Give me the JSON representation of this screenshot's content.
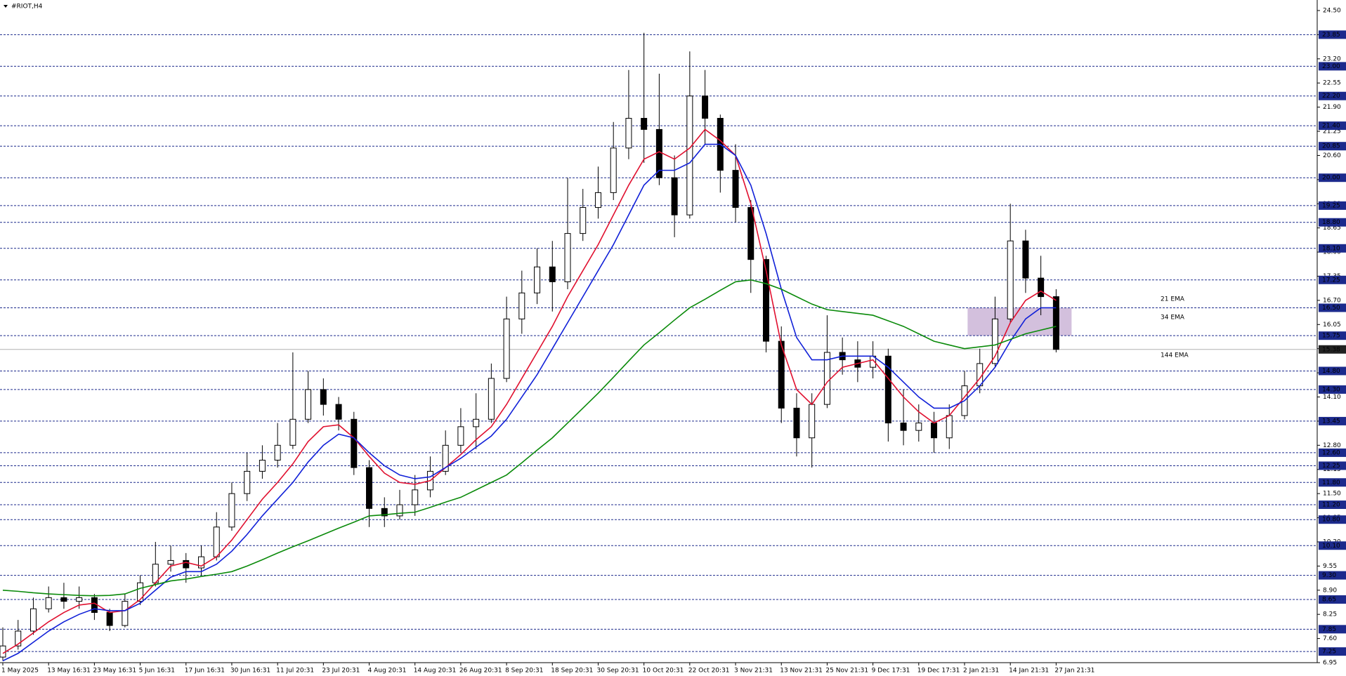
{
  "chart_data": {
    "type": "candlestick",
    "title": "#RIOT,H4",
    "categories": [
      "1 May 2025",
      null,
      null,
      "13 May 16:31",
      null,
      null,
      "23 May 16:31",
      null,
      null,
      "5 Jun 16:31",
      null,
      null,
      "17 Jun 16:31",
      null,
      null,
      "30 Jun 16:31",
      null,
      null,
      "11 Jul 20:31",
      null,
      null,
      "23 Jul 20:31",
      null,
      null,
      "4 Aug 20:31",
      null,
      null,
      "14 Aug 20:31",
      null,
      null,
      "26 Aug 20:31",
      null,
      null,
      "8 Sep 20:31",
      null,
      null,
      "18 Sep 20:31",
      null,
      null,
      "30 Sep 20:31",
      null,
      null,
      "10 Oct 20:31",
      null,
      null,
      "22 Oct 20:31",
      null,
      null,
      "3 Nov 21:31",
      null,
      null,
      "13 Nov 21:31",
      null,
      null,
      "25 Nov 21:31",
      null,
      null,
      "9 Dec 17:31",
      null,
      null,
      "19 Dec 17:31",
      null,
      null,
      "2 Jan 21:31",
      null,
      null,
      "14 Jan 21:31",
      null,
      null,
      "27 Jan 21:31"
    ],
    "open": [
      7.1,
      7.4,
      7.8,
      8.4,
      8.7,
      8.6,
      8.7,
      8.3,
      7.95,
      8.6,
      9.1,
      9.6,
      9.7,
      9.5,
      9.8,
      10.6,
      11.5,
      12.1,
      12.4,
      12.8,
      13.5,
      14.3,
      13.9,
      13.5,
      12.2,
      11.1,
      10.9,
      11.2,
      11.6,
      12.1,
      12.8,
      13.3,
      13.5,
      14.6,
      16.2,
      16.9,
      17.6,
      17.2,
      18.5,
      19.2,
      19.6,
      20.8,
      21.6,
      21.3,
      20.0,
      19.0,
      22.2,
      21.6,
      20.2,
      19.2,
      17.8,
      15.6,
      13.8,
      13.0,
      13.9,
      15.3,
      15.1,
      14.9,
      15.2,
      13.4,
      13.2,
      13.4,
      13.0,
      13.6,
      14.4,
      15.0,
      16.2,
      18.3,
      17.3,
      16.8
    ],
    "high": [
      7.9,
      8.1,
      8.7,
      9.0,
      9.1,
      9.0,
      8.8,
      8.4,
      8.8,
      9.3,
      10.2,
      10.1,
      9.9,
      10.1,
      11.0,
      11.8,
      12.6,
      12.8,
      13.4,
      15.3,
      14.8,
      14.6,
      14.1,
      13.7,
      12.4,
      11.4,
      11.6,
      12.0,
      12.5,
      13.2,
      13.8,
      14.2,
      15.0,
      16.8,
      17.5,
      18.1,
      18.3,
      20.0,
      19.7,
      20.3,
      21.5,
      22.9,
      23.9,
      22.8,
      20.6,
      23.4,
      22.9,
      21.7,
      20.9,
      19.4,
      17.9,
      16.0,
      14.2,
      14.2,
      16.3,
      15.7,
      15.6,
      15.6,
      15.4,
      14.3,
      13.9,
      13.7,
      13.9,
      14.8,
      15.4,
      16.8,
      19.3,
      18.6,
      17.9,
      17.0
    ],
    "low": [
      7.0,
      7.3,
      7.7,
      8.3,
      8.4,
      8.4,
      8.1,
      7.8,
      7.9,
      8.5,
      9.0,
      9.4,
      9.1,
      9.3,
      9.7,
      10.5,
      11.3,
      11.9,
      12.2,
      12.7,
      13.4,
      13.6,
      13.2,
      12.0,
      10.6,
      10.6,
      10.8,
      10.9,
      11.4,
      12.0,
      12.6,
      12.7,
      13.4,
      14.5,
      15.8,
      16.6,
      16.4,
      17.0,
      18.3,
      18.9,
      19.4,
      20.5,
      20.4,
      19.8,
      18.4,
      18.9,
      20.9,
      19.6,
      18.8,
      16.9,
      15.3,
      13.4,
      12.5,
      12.2,
      13.8,
      14.7,
      14.5,
      14.6,
      12.9,
      12.8,
      12.9,
      12.6,
      12.7,
      13.5,
      14.2,
      14.9,
      16.1,
      16.9,
      16.3,
      15.3
    ],
    "close": [
      7.4,
      7.8,
      8.4,
      8.7,
      8.6,
      8.7,
      8.3,
      7.95,
      8.6,
      9.1,
      9.6,
      9.7,
      9.5,
      9.8,
      10.6,
      11.5,
      12.1,
      12.4,
      12.8,
      13.5,
      14.3,
      13.9,
      13.5,
      12.2,
      11.1,
      10.9,
      11.2,
      11.6,
      12.1,
      12.8,
      13.3,
      13.5,
      14.6,
      16.2,
      16.9,
      17.6,
      17.2,
      18.5,
      19.2,
      19.6,
      20.8,
      21.6,
      21.3,
      20.0,
      19.0,
      22.2,
      21.6,
      20.2,
      19.2,
      17.8,
      15.6,
      13.8,
      13.0,
      13.9,
      15.3,
      15.1,
      14.9,
      15.2,
      13.4,
      13.2,
      13.4,
      13.0,
      13.6,
      14.4,
      15.0,
      16.2,
      18.3,
      17.3,
      16.8,
      15.38
    ],
    "series": [
      {
        "name": "21 EMA",
        "color": "#e0102f",
        "values": [
          7.2,
          7.45,
          7.75,
          8.05,
          8.3,
          8.5,
          8.55,
          8.3,
          8.35,
          8.65,
          9.1,
          9.55,
          9.65,
          9.55,
          9.8,
          10.25,
          10.8,
          11.35,
          11.8,
          12.3,
          12.9,
          13.3,
          13.35,
          13.0,
          12.5,
          12.05,
          11.8,
          11.75,
          11.85,
          12.2,
          12.55,
          12.95,
          13.3,
          13.9,
          14.6,
          15.3,
          16.0,
          16.8,
          17.5,
          18.2,
          19.0,
          19.8,
          20.5,
          20.7,
          20.5,
          20.8,
          21.3,
          21.0,
          20.6,
          19.3,
          17.5,
          15.5,
          14.3,
          13.9,
          14.5,
          14.9,
          15.0,
          15.1,
          14.6,
          14.1,
          13.7,
          13.4,
          13.6,
          14.1,
          14.6,
          15.2,
          16.1,
          16.7,
          16.95,
          16.7
        ]
      },
      {
        "name": "34 EMA",
        "color": "#1020d8",
        "values": [
          7.0,
          7.2,
          7.5,
          7.8,
          8.05,
          8.25,
          8.4,
          8.35,
          8.35,
          8.55,
          8.9,
          9.25,
          9.4,
          9.4,
          9.6,
          9.95,
          10.4,
          10.9,
          11.35,
          11.8,
          12.35,
          12.8,
          13.1,
          13.0,
          12.6,
          12.25,
          12.0,
          11.9,
          11.95,
          12.2,
          12.45,
          12.75,
          13.05,
          13.5,
          14.1,
          14.7,
          15.4,
          16.1,
          16.8,
          17.5,
          18.2,
          19.0,
          19.8,
          20.2,
          20.2,
          20.4,
          20.9,
          20.9,
          20.6,
          19.8,
          18.5,
          17.0,
          15.7,
          15.1,
          15.1,
          15.2,
          15.2,
          15.2,
          14.9,
          14.5,
          14.1,
          13.8,
          13.8,
          14.0,
          14.4,
          14.9,
          15.6,
          16.2,
          16.5,
          16.5
        ]
      },
      {
        "name": "144 EMA",
        "color": "#0a8a0a",
        "values": [
          8.9,
          8.87,
          8.83,
          8.8,
          8.78,
          8.76,
          8.75,
          8.76,
          8.8,
          8.95,
          9.05,
          9.15,
          9.2,
          9.27,
          9.33,
          9.4,
          9.55,
          9.72,
          9.9,
          10.07,
          10.23,
          10.4,
          10.57,
          10.73,
          10.9,
          10.93,
          10.97,
          11.0,
          11.13,
          11.27,
          11.4,
          11.6,
          11.8,
          12.0,
          12.33,
          12.67,
          13.0,
          13.4,
          13.8,
          14.2,
          14.63,
          15.07,
          15.5,
          15.83,
          16.17,
          16.5,
          16.73,
          16.97,
          17.2,
          17.25,
          17.15,
          17.0,
          16.8,
          16.6,
          16.45,
          16.4,
          16.35,
          16.3,
          16.15,
          16.0,
          15.8,
          15.6,
          15.5,
          15.4,
          15.45,
          15.5,
          15.65,
          15.8,
          15.9,
          16.0
        ]
      }
    ],
    "ylim": [
      6.95,
      24.5
    ],
    "yticks": [
      6.95,
      {
        "value": 7.6,
        "label": "7.60"
      },
      8.25,
      {
        "value": 8.9,
        "label": "8.90"
      },
      9.55,
      {
        "value": 10.2,
        "label": "10.20"
      },
      10.85,
      {
        "value": 11.5,
        "label": "11.50"
      },
      12.15,
      {
        "value": 12.8,
        "label": "12.80"
      },
      13.45,
      {
        "value": 14.1,
        "label": "14.10"
      },
      14.75,
      {
        "value": 15.4,
        "label": "15.40"
      },
      16.05,
      {
        "value": 16.7,
        "label": "16.70"
      },
      17.35,
      {
        "value": 18,
        "label": "18.00"
      },
      18.65,
      {
        "value": 19.3,
        "label": "19.30"
      },
      19.95,
      {
        "value": 20.6,
        "label": "20.60"
      },
      21.25,
      {
        "value": 21.9,
        "label": "21.90"
      },
      22.55,
      {
        "value": 23.2,
        "label": "23.20"
      },
      23.85,
      {
        "value": 24.5,
        "label": "24.50"
      }
    ],
    "levels": [
      23.85,
      {
        "value": 23,
        "label": "23.00"
      },
      {
        "value": 22.2,
        "label": "22.20"
      },
      {
        "value": 21.4,
        "label": "21.40"
      },
      20.85,
      {
        "value": 20,
        "label": "20.00"
      },
      19.25,
      {
        "value": 18.8,
        "label": "18.80"
      },
      {
        "value": 18.1,
        "label": "18.10"
      },
      17.25,
      {
        "value": 16.5,
        "label": "16.50"
      },
      15.75,
      {
        "value": 14.8,
        "label": "14.80"
      },
      {
        "value": 14.3,
        "label": "14.30"
      },
      13.45,
      {
        "value": 12.6,
        "label": "12.60"
      },
      12.25,
      {
        "value": 11.8,
        "label": "11.80"
      },
      {
        "value": 11.2,
        "label": "11.20"
      },
      {
        "value": 10.8,
        "label": "10.80"
      },
      {
        "value": 10.1,
        "label": "10.10"
      },
      {
        "value": 9.3,
        "label": "9.30"
      },
      8.65,
      7.85,
      7.25
    ],
    "last_price": 15.38,
    "zone": [
      15.75,
      16.5
    ],
    "up_color": "#ffffff",
    "down_color": "#000000",
    "level_color": "#1c2a8c"
  }
}
